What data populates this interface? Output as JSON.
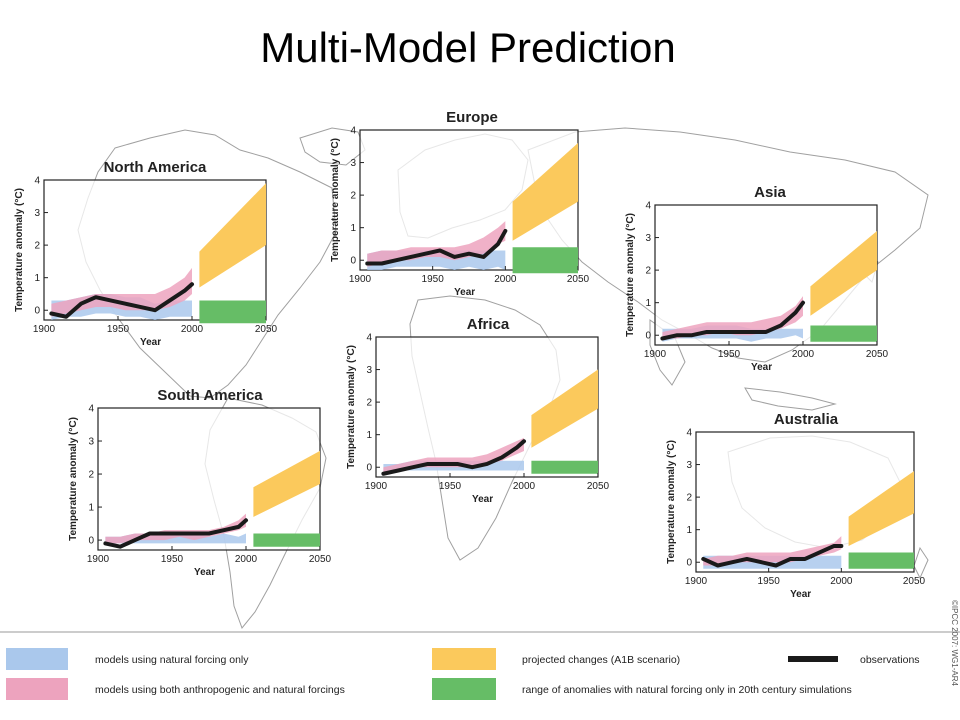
{
  "title": "Multi-Model Prediction",
  "credit": "©IPCC 2007: WG1-AR4",
  "colors": {
    "natural": "#aac8ec",
    "both": "#eda3be",
    "projected": "#fbc95c",
    "natural_range": "#66bd66",
    "observations": "#1a1a1a",
    "map": "#9a9a9a"
  },
  "legend": {
    "natural": "models using natural forcing only",
    "both": "models using both anthropogenic and natural forcings",
    "projected": "projected changes (A1B scenario)",
    "natural_range": "range of anomalies with natural forcing only in 20th century simulations",
    "observations": "observations"
  },
  "chart_data": [
    {
      "type": "area",
      "title": "North America",
      "xlabel": "Year",
      "ylabel": "Temperature anomaly (°C)",
      "xlim": [
        1900,
        2050
      ],
      "ylim": [
        -0.3,
        4
      ],
      "xticks": [
        "1900",
        "1950",
        "2000",
        "2050"
      ],
      "yticks": [
        "0",
        "1",
        "2",
        "3",
        "4"
      ],
      "x": [
        1905,
        1915,
        1925,
        1935,
        1945,
        1955,
        1965,
        1975,
        1985,
        1995,
        2000
      ],
      "observations": [
        -0.1,
        -0.2,
        0.2,
        0.4,
        0.3,
        0.2,
        0.1,
        0.0,
        0.3,
        0.6,
        0.8
      ],
      "natural": {
        "low": [
          -0.3,
          -0.2,
          -0.2,
          -0.1,
          -0.1,
          -0.2,
          -0.2,
          -0.3,
          -0.2,
          -0.2,
          -0.2
        ],
        "high": [
          0.3,
          0.3,
          0.4,
          0.5,
          0.5,
          0.4,
          0.4,
          0.2,
          0.3,
          0.3,
          0.3
        ]
      },
      "both": {
        "low": [
          -0.2,
          -0.1,
          0.0,
          0.1,
          0.1,
          0.0,
          0.0,
          0.0,
          0.1,
          0.3,
          0.5
        ],
        "high": [
          0.2,
          0.3,
          0.4,
          0.5,
          0.5,
          0.5,
          0.5,
          0.5,
          0.7,
          1.0,
          1.3
        ]
      },
      "projected": {
        "x": [
          2005,
          2050
        ],
        "low": [
          0.7,
          2.0
        ],
        "high": [
          1.8,
          3.9
        ]
      },
      "natural_range": {
        "x": [
          2005,
          2050
        ],
        "low": [
          -0.4,
          -0.4
        ],
        "high": [
          0.3,
          0.3
        ]
      }
    },
    {
      "type": "area",
      "title": "Europe",
      "xlabel": "Year",
      "ylabel": "Temperature anomaly (°C)",
      "xlim": [
        1900,
        2050
      ],
      "ylim": [
        -0.3,
        4
      ],
      "xticks": [
        "1900",
        "1950",
        "2000",
        "2050"
      ],
      "yticks": [
        "0",
        "1",
        "2",
        "3",
        "4"
      ],
      "x": [
        1905,
        1915,
        1925,
        1935,
        1945,
        1955,
        1965,
        1975,
        1985,
        1995,
        2000
      ],
      "observations": [
        -0.1,
        -0.1,
        0.0,
        0.1,
        0.2,
        0.3,
        0.1,
        0.2,
        0.1,
        0.5,
        0.9
      ],
      "natural": {
        "low": [
          -0.3,
          -0.3,
          -0.2,
          -0.2,
          -0.2,
          -0.2,
          -0.3,
          -0.2,
          -0.3,
          -0.2,
          -0.3
        ],
        "high": [
          0.2,
          0.3,
          0.3,
          0.3,
          0.3,
          0.3,
          0.3,
          0.3,
          0.3,
          0.3,
          0.3
        ]
      },
      "both": {
        "low": [
          -0.2,
          -0.1,
          0.0,
          0.0,
          0.1,
          0.1,
          0.0,
          0.1,
          0.2,
          0.5,
          0.6
        ],
        "high": [
          0.2,
          0.3,
          0.3,
          0.4,
          0.4,
          0.4,
          0.4,
          0.5,
          0.7,
          1.0,
          1.2
        ]
      },
      "projected": {
        "x": [
          2005,
          2050
        ],
        "low": [
          0.6,
          1.8
        ],
        "high": [
          1.8,
          3.6
        ]
      },
      "natural_range": {
        "x": [
          2005,
          2050
        ],
        "low": [
          -0.4,
          -0.4
        ],
        "high": [
          0.4,
          0.4
        ]
      }
    },
    {
      "type": "area",
      "title": "Asia",
      "xlabel": "Year",
      "ylabel": "Temperature anomaly (°C)",
      "xlim": [
        1900,
        2050
      ],
      "ylim": [
        -0.3,
        4
      ],
      "xticks": [
        "1900",
        "1950",
        "2000",
        "2050"
      ],
      "yticks": [
        "0",
        "1",
        "2",
        "3",
        "4"
      ],
      "x": [
        1905,
        1915,
        1925,
        1935,
        1945,
        1955,
        1965,
        1975,
        1985,
        1995,
        2000
      ],
      "observations": [
        -0.1,
        0.0,
        0.0,
        0.1,
        0.1,
        0.1,
        0.1,
        0.1,
        0.3,
        0.7,
        1.0
      ],
      "natural": {
        "low": [
          -0.2,
          -0.1,
          -0.1,
          -0.1,
          -0.1,
          -0.1,
          -0.2,
          -0.1,
          -0.1,
          0.0,
          -0.1
        ],
        "high": [
          0.2,
          0.2,
          0.2,
          0.3,
          0.3,
          0.3,
          0.2,
          0.2,
          0.2,
          0.2,
          0.2
        ]
      },
      "both": {
        "low": [
          -0.1,
          -0.1,
          0.0,
          0.0,
          0.1,
          0.0,
          0.0,
          0.1,
          0.2,
          0.4,
          0.6
        ],
        "high": [
          0.1,
          0.2,
          0.3,
          0.4,
          0.4,
          0.4,
          0.4,
          0.5,
          0.6,
          0.9,
          1.2
        ]
      },
      "projected": {
        "x": [
          2005,
          2050
        ],
        "low": [
          0.6,
          2.0
        ],
        "high": [
          1.5,
          3.2
        ]
      },
      "natural_range": {
        "x": [
          2005,
          2050
        ],
        "low": [
          -0.2,
          -0.2
        ],
        "high": [
          0.3,
          0.3
        ]
      }
    },
    {
      "type": "area",
      "title": "Africa",
      "xlabel": "Year",
      "ylabel": "Temperature anomaly (°C)",
      "xlim": [
        1900,
        2050
      ],
      "ylim": [
        -0.3,
        4
      ],
      "xticks": [
        "1900",
        "1950",
        "2000",
        "2050"
      ],
      "yticks": [
        "0",
        "1",
        "2",
        "3",
        "4"
      ],
      "x": [
        1905,
        1915,
        1925,
        1935,
        1945,
        1955,
        1965,
        1975,
        1985,
        1995,
        2000
      ],
      "observations": [
        -0.2,
        -0.1,
        0.0,
        0.1,
        0.1,
        0.1,
        0.0,
        0.1,
        0.3,
        0.6,
        0.8
      ],
      "natural": {
        "low": [
          -0.2,
          -0.1,
          -0.1,
          -0.1,
          -0.1,
          -0.1,
          -0.1,
          -0.1,
          -0.1,
          -0.1,
          -0.1
        ],
        "high": [
          0.1,
          0.1,
          0.2,
          0.2,
          0.2,
          0.2,
          0.2,
          0.2,
          0.2,
          0.2,
          0.2
        ]
      },
      "both": {
        "low": [
          -0.2,
          -0.1,
          0.0,
          0.0,
          0.0,
          0.0,
          0.0,
          0.1,
          0.2,
          0.4,
          0.5
        ],
        "high": [
          0.0,
          0.1,
          0.2,
          0.3,
          0.3,
          0.3,
          0.3,
          0.4,
          0.6,
          0.8,
          0.9
        ]
      },
      "projected": {
        "x": [
          2005,
          2050
        ],
        "low": [
          0.6,
          1.8
        ],
        "high": [
          1.6,
          3.0
        ]
      },
      "natural_range": {
        "x": [
          2005,
          2050
        ],
        "low": [
          -0.2,
          -0.2
        ],
        "high": [
          0.2,
          0.2
        ]
      }
    },
    {
      "type": "area",
      "title": "South America",
      "xlabel": "Year",
      "ylabel": "Temperature anomaly (°C)",
      "xlim": [
        1900,
        2050
      ],
      "ylim": [
        -0.3,
        4
      ],
      "xticks": [
        "1900",
        "1950",
        "2000",
        "2050"
      ],
      "yticks": [
        "0",
        "1",
        "2",
        "3",
        "4"
      ],
      "x": [
        1905,
        1915,
        1925,
        1935,
        1945,
        1955,
        1965,
        1975,
        1985,
        1995,
        2000
      ],
      "observations": [
        -0.1,
        -0.2,
        0.0,
        0.2,
        0.2,
        0.2,
        0.2,
        0.2,
        0.3,
        0.4,
        0.6
      ],
      "natural": {
        "low": [
          -0.1,
          -0.1,
          -0.1,
          -0.1,
          -0.1,
          -0.1,
          -0.1,
          -0.1,
          -0.1,
          -0.1,
          -0.1
        ],
        "high": [
          0.1,
          0.1,
          0.2,
          0.2,
          0.2,
          0.2,
          0.2,
          0.1,
          0.2,
          0.1,
          0.2
        ]
      },
      "both": {
        "low": [
          -0.1,
          -0.1,
          0.0,
          0.0,
          0.0,
          0.1,
          0.0,
          0.1,
          0.2,
          0.3,
          0.4
        ],
        "high": [
          0.1,
          0.1,
          0.2,
          0.2,
          0.3,
          0.3,
          0.3,
          0.3,
          0.4,
          0.6,
          0.8
        ]
      },
      "projected": {
        "x": [
          2005,
          2050
        ],
        "low": [
          0.7,
          1.7
        ],
        "high": [
          1.6,
          2.7
        ]
      },
      "natural_range": {
        "x": [
          2005,
          2050
        ],
        "low": [
          -0.2,
          -0.2
        ],
        "high": [
          0.2,
          0.2
        ]
      }
    },
    {
      "type": "area",
      "title": "Australia",
      "xlabel": "Year",
      "ylabel": "Temperature anomaly (°C)",
      "xlim": [
        1900,
        2050
      ],
      "ylim": [
        -0.3,
        4
      ],
      "xticks": [
        "1900",
        "1950",
        "2000",
        "2050"
      ],
      "yticks": [
        "0",
        "1",
        "2",
        "3",
        "4"
      ],
      "x": [
        1905,
        1915,
        1925,
        1935,
        1945,
        1955,
        1965,
        1975,
        1985,
        1995,
        2000
      ],
      "observations": [
        0.1,
        -0.1,
        0.0,
        0.1,
        0.0,
        -0.1,
        0.1,
        0.1,
        0.3,
        0.5,
        0.5
      ],
      "natural": {
        "low": [
          -0.2,
          -0.2,
          -0.2,
          -0.2,
          -0.2,
          -0.2,
          -0.2,
          -0.2,
          -0.2,
          -0.2,
          -0.2
        ],
        "high": [
          0.2,
          0.2,
          0.2,
          0.2,
          0.2,
          0.2,
          0.2,
          0.2,
          0.2,
          0.2,
          0.2
        ]
      },
      "both": {
        "low": [
          -0.1,
          -0.1,
          0.0,
          0.0,
          0.0,
          0.0,
          0.0,
          0.1,
          0.2,
          0.3,
          0.4
        ],
        "high": [
          0.1,
          0.2,
          0.2,
          0.3,
          0.3,
          0.3,
          0.3,
          0.4,
          0.5,
          0.6,
          0.8
        ]
      },
      "projected": {
        "x": [
          2005,
          2050
        ],
        "low": [
          0.5,
          1.5
        ],
        "high": [
          1.4,
          2.8
        ]
      },
      "natural_range": {
        "x": [
          2005,
          2050
        ],
        "low": [
          -0.2,
          -0.2
        ],
        "high": [
          0.3,
          0.3
        ]
      }
    }
  ]
}
